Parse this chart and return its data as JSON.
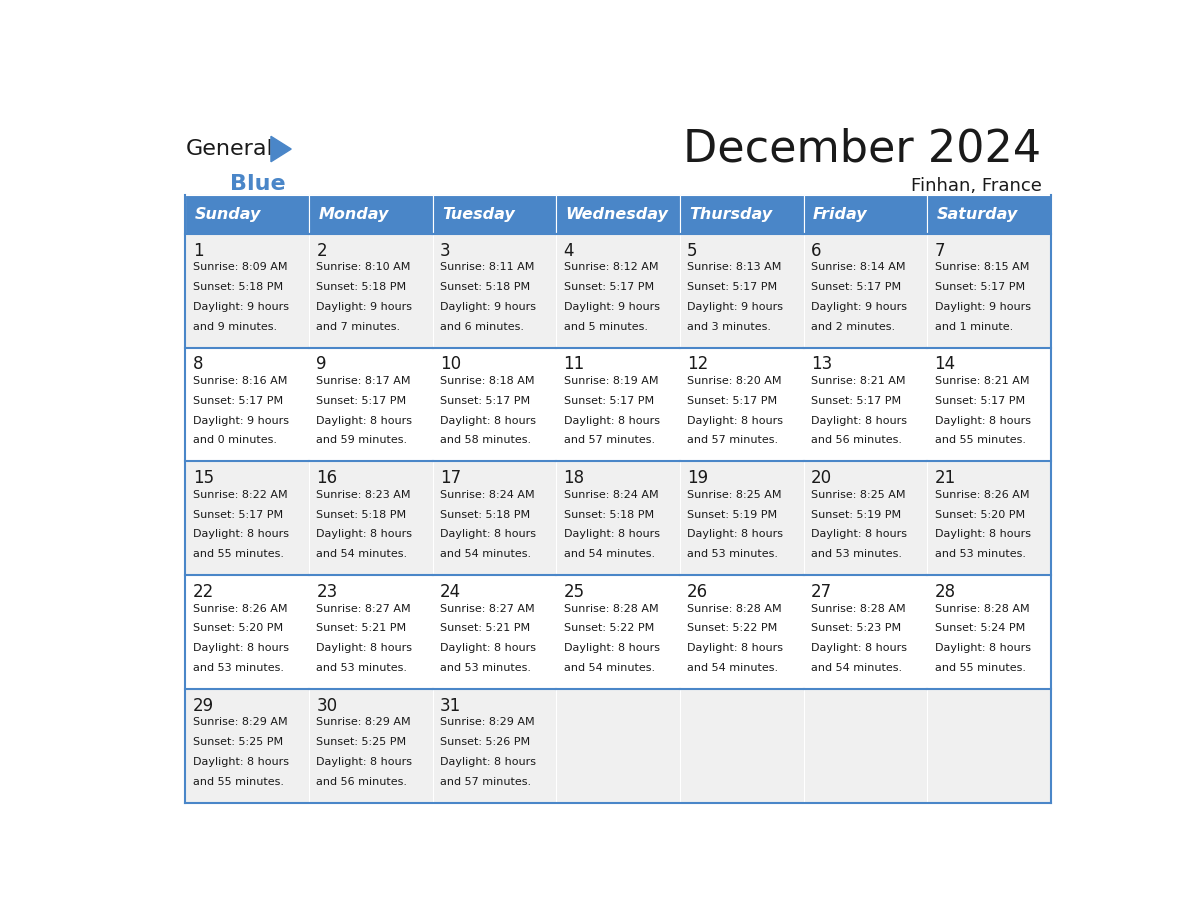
{
  "title": "December 2024",
  "subtitle": "Finhan, France",
  "header_color": "#4a86c8",
  "header_text_color": "#ffffff",
  "cell_bg_color": "#ffffff",
  "alt_cell_bg_color": "#f0f0f0",
  "border_color": "#4a86c8",
  "day_headers": [
    "Sunday",
    "Monday",
    "Tuesday",
    "Wednesday",
    "Thursday",
    "Friday",
    "Saturday"
  ],
  "weeks": [
    [
      {
        "day": 1,
        "sunrise": "8:09 AM",
        "sunset": "5:18 PM",
        "daylight": "9 hours and 9 minutes."
      },
      {
        "day": 2,
        "sunrise": "8:10 AM",
        "sunset": "5:18 PM",
        "daylight": "9 hours and 7 minutes."
      },
      {
        "day": 3,
        "sunrise": "8:11 AM",
        "sunset": "5:18 PM",
        "daylight": "9 hours and 6 minutes."
      },
      {
        "day": 4,
        "sunrise": "8:12 AM",
        "sunset": "5:17 PM",
        "daylight": "9 hours and 5 minutes."
      },
      {
        "day": 5,
        "sunrise": "8:13 AM",
        "sunset": "5:17 PM",
        "daylight": "9 hours and 3 minutes."
      },
      {
        "day": 6,
        "sunrise": "8:14 AM",
        "sunset": "5:17 PM",
        "daylight": "9 hours and 2 minutes."
      },
      {
        "day": 7,
        "sunrise": "8:15 AM",
        "sunset": "5:17 PM",
        "daylight": "9 hours and 1 minute."
      }
    ],
    [
      {
        "day": 8,
        "sunrise": "8:16 AM",
        "sunset": "5:17 PM",
        "daylight": "9 hours and 0 minutes."
      },
      {
        "day": 9,
        "sunrise": "8:17 AM",
        "sunset": "5:17 PM",
        "daylight": "8 hours and 59 minutes."
      },
      {
        "day": 10,
        "sunrise": "8:18 AM",
        "sunset": "5:17 PM",
        "daylight": "8 hours and 58 minutes."
      },
      {
        "day": 11,
        "sunrise": "8:19 AM",
        "sunset": "5:17 PM",
        "daylight": "8 hours and 57 minutes."
      },
      {
        "day": 12,
        "sunrise": "8:20 AM",
        "sunset": "5:17 PM",
        "daylight": "8 hours and 57 minutes."
      },
      {
        "day": 13,
        "sunrise": "8:21 AM",
        "sunset": "5:17 PM",
        "daylight": "8 hours and 56 minutes."
      },
      {
        "day": 14,
        "sunrise": "8:21 AM",
        "sunset": "5:17 PM",
        "daylight": "8 hours and 55 minutes."
      }
    ],
    [
      {
        "day": 15,
        "sunrise": "8:22 AM",
        "sunset": "5:17 PM",
        "daylight": "8 hours and 55 minutes."
      },
      {
        "day": 16,
        "sunrise": "8:23 AM",
        "sunset": "5:18 PM",
        "daylight": "8 hours and 54 minutes."
      },
      {
        "day": 17,
        "sunrise": "8:24 AM",
        "sunset": "5:18 PM",
        "daylight": "8 hours and 54 minutes."
      },
      {
        "day": 18,
        "sunrise": "8:24 AM",
        "sunset": "5:18 PM",
        "daylight": "8 hours and 54 minutes."
      },
      {
        "day": 19,
        "sunrise": "8:25 AM",
        "sunset": "5:19 PM",
        "daylight": "8 hours and 53 minutes."
      },
      {
        "day": 20,
        "sunrise": "8:25 AM",
        "sunset": "5:19 PM",
        "daylight": "8 hours and 53 minutes."
      },
      {
        "day": 21,
        "sunrise": "8:26 AM",
        "sunset": "5:20 PM",
        "daylight": "8 hours and 53 minutes."
      }
    ],
    [
      {
        "day": 22,
        "sunrise": "8:26 AM",
        "sunset": "5:20 PM",
        "daylight": "8 hours and 53 minutes."
      },
      {
        "day": 23,
        "sunrise": "8:27 AM",
        "sunset": "5:21 PM",
        "daylight": "8 hours and 53 minutes."
      },
      {
        "day": 24,
        "sunrise": "8:27 AM",
        "sunset": "5:21 PM",
        "daylight": "8 hours and 53 minutes."
      },
      {
        "day": 25,
        "sunrise": "8:28 AM",
        "sunset": "5:22 PM",
        "daylight": "8 hours and 54 minutes."
      },
      {
        "day": 26,
        "sunrise": "8:28 AM",
        "sunset": "5:22 PM",
        "daylight": "8 hours and 54 minutes."
      },
      {
        "day": 27,
        "sunrise": "8:28 AM",
        "sunset": "5:23 PM",
        "daylight": "8 hours and 54 minutes."
      },
      {
        "day": 28,
        "sunrise": "8:28 AM",
        "sunset": "5:24 PM",
        "daylight": "8 hours and 55 minutes."
      }
    ],
    [
      {
        "day": 29,
        "sunrise": "8:29 AM",
        "sunset": "5:25 PM",
        "daylight": "8 hours and 55 minutes."
      },
      {
        "day": 30,
        "sunrise": "8:29 AM",
        "sunset": "5:25 PM",
        "daylight": "8 hours and 56 minutes."
      },
      {
        "day": 31,
        "sunrise": "8:29 AM",
        "sunset": "5:26 PM",
        "daylight": "8 hours and 57 minutes."
      },
      null,
      null,
      null,
      null
    ]
  ],
  "logo_color_general": "#1a1a1a",
  "logo_color_blue": "#4a86c8",
  "logo_triangle_color": "#4a86c8"
}
